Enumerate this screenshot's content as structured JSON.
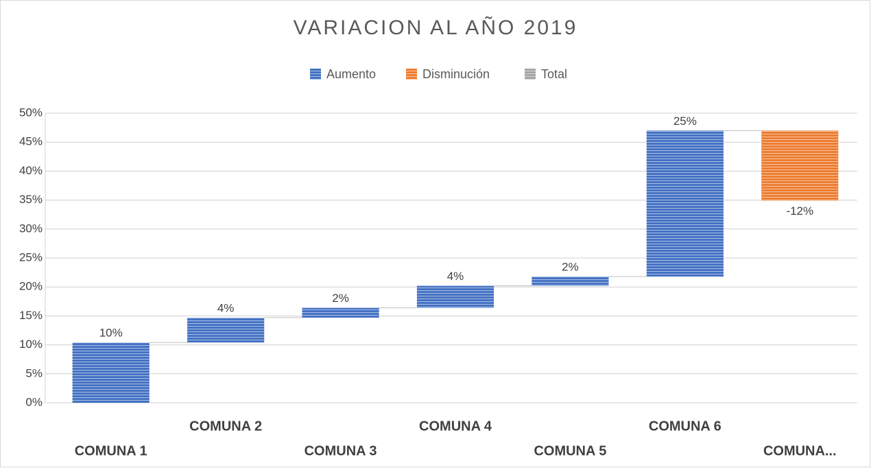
{
  "chart_data": {
    "type": "waterfall",
    "title": "VARIACION AL AÑO 2019",
    "legend": [
      {
        "name": "Aumento",
        "color": "#4472c4"
      },
      {
        "name": "Disminución",
        "color": "#ed7d31"
      },
      {
        "name": "Total",
        "color": "#a5a5a5"
      }
    ],
    "categories": [
      "COMUNA 1",
      "COMUNA 2",
      "COMUNA 3",
      "COMUNA 4",
      "COMUNA 5",
      "COMUNA 6",
      "COMUNA..."
    ],
    "values": [
      10.4,
      4.3,
      1.7,
      3.8,
      1.6,
      25.2,
      -12.1
    ],
    "value_labels": [
      "10%",
      "4%",
      "2%",
      "4%",
      "2%",
      "25%",
      "-12%"
    ],
    "ylim": [
      0,
      50
    ],
    "yticks": [
      {
        "value": 0,
        "label": "0%"
      },
      {
        "value": 5,
        "label": "5%"
      },
      {
        "value": 10,
        "label": "10%"
      },
      {
        "value": 15,
        "label": "15%"
      },
      {
        "value": 20,
        "label": "20%"
      },
      {
        "value": 25,
        "label": "25%"
      },
      {
        "value": 30,
        "label": "30%"
      },
      {
        "value": 35,
        "label": "35%"
      },
      {
        "value": 40,
        "label": "40%"
      },
      {
        "value": 45,
        "label": "45%"
      },
      {
        "value": 50,
        "label": "50%"
      }
    ],
    "grid": true
  }
}
